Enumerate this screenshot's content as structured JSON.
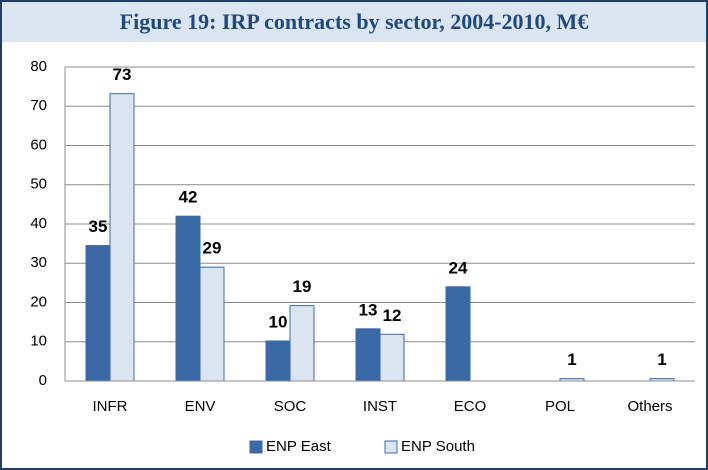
{
  "chart_data": {
    "type": "bar",
    "title": "Figure 19: IRP contracts by sector, 2004-2010, M€",
    "categories": [
      "INFR",
      "ENV",
      "SOC",
      "INST",
      "ECO",
      "POL",
      "Others"
    ],
    "series": [
      {
        "name": "ENP East",
        "color": "#3b69a6",
        "values": [
          34.5,
          42,
          10.2,
          13.3,
          24,
          null,
          null
        ],
        "value_labels": [
          "35",
          "42",
          "10",
          "13",
          "24",
          null,
          null
        ]
      },
      {
        "name": "ENP South",
        "color": "#dbe5f1",
        "values": [
          73.2,
          29,
          19.2,
          11.9,
          null,
          0.6,
          0.6
        ],
        "value_labels": [
          "73",
          "29",
          "19",
          "12",
          null,
          "1",
          "1"
        ]
      }
    ],
    "ylim": [
      0,
      80
    ],
    "yticks": [
      0,
      10,
      20,
      30,
      40,
      50,
      60,
      70,
      80
    ],
    "grid": true,
    "legend": "bottom"
  }
}
